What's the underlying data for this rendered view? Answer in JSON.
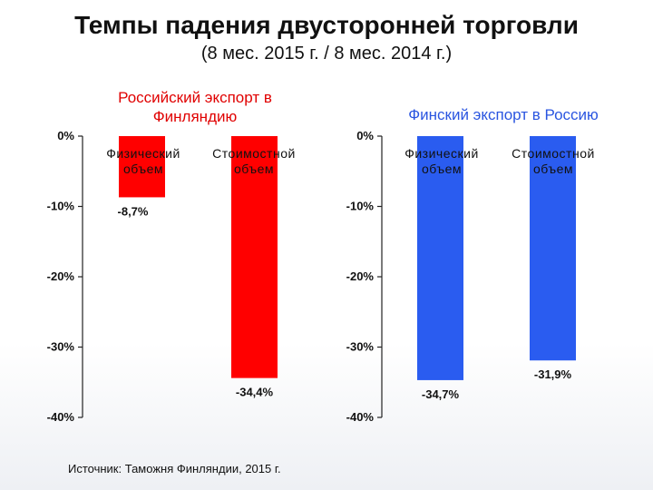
{
  "title": "Темпы падения двусторонней торговли",
  "subtitle": "(8 мес. 2015 г. / 8 мес. 2014 г.)",
  "source": "Источник: Таможня Финляндии, 2015 г.",
  "colors": {
    "red": "#ff0000",
    "blue": "#2a5cf0"
  },
  "chart_data": [
    {
      "type": "bar",
      "title": "Российский экспорт в Финляндию",
      "categories": [
        "Физический объем",
        "Стоимостной объем"
      ],
      "values": [
        -8.7,
        -34.4
      ],
      "data_labels": [
        "-8,7%",
        "-34,4%"
      ],
      "ylim": [
        -40,
        0
      ],
      "yticks": [
        0,
        -10,
        -20,
        -30,
        -40
      ],
      "ytick_labels": [
        "0%",
        "-10%",
        "-20%",
        "-30%",
        "-40%"
      ],
      "color": "#ff0000",
      "grid": false
    },
    {
      "type": "bar",
      "title": "Финский экспорт в Россию",
      "categories": [
        "Физический объем",
        "Стоимостной объем"
      ],
      "values": [
        -34.7,
        -31.9
      ],
      "data_labels": [
        "-34,7%",
        "-31,9%"
      ],
      "ylim": [
        -40,
        0
      ],
      "yticks": [
        0,
        -10,
        -20,
        -30,
        -40
      ],
      "ytick_labels": [
        "0%",
        "-10%",
        "-20%",
        "-30%",
        "-40%"
      ],
      "color": "#2a5cf0",
      "grid": false
    }
  ]
}
